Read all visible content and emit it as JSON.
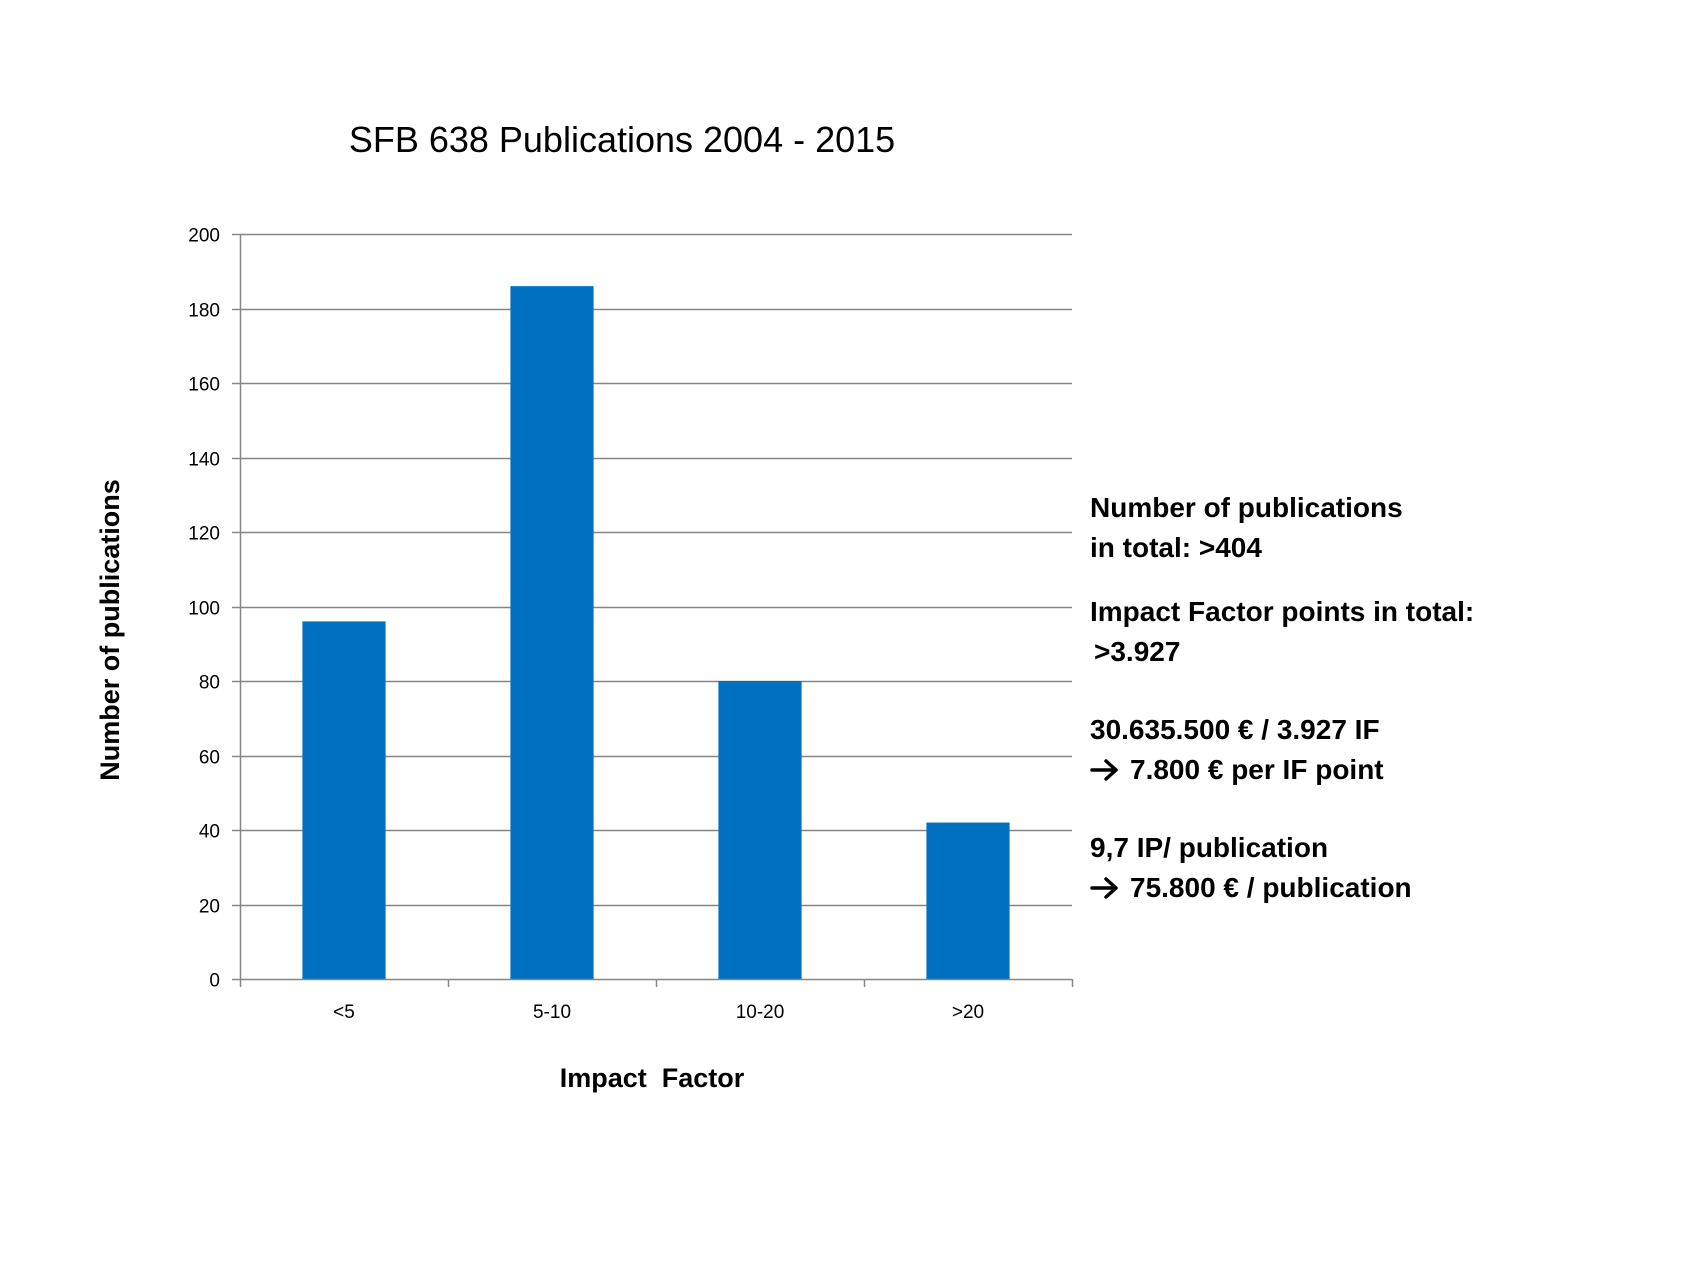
{
  "chart_data": {
    "type": "bar",
    "title": "SFB 638 Publications 2004 - 2015",
    "xlabel": "Impact  Factor",
    "ylabel": "Number of publications",
    "categories": [
      "<5",
      "5-10",
      "10-20",
      ">20"
    ],
    "series": [
      {
        "values": [
          96,
          186,
          80,
          42
        ]
      }
    ],
    "ylim": [
      0,
      200
    ],
    "yticks": [
      0,
      20,
      40,
      60,
      80,
      100,
      120,
      140,
      160,
      180,
      200
    ],
    "ytick_labels": [
      "0",
      "20",
      "40",
      "60",
      "80",
      "100",
      "120",
      "140",
      "160",
      "180",
      "200"
    ],
    "grid": true,
    "legend": "none",
    "bar_color": "#0070C0",
    "grid_color": "#868686"
  },
  "info": {
    "total_pubs_line1": "Number of publications",
    "total_pubs_line2": "in total:  >404",
    "if_points_line1": "Impact Factor points  in total:",
    "if_points_line2": ">3.927",
    "cost_line1": "30.635.500 € / 3.927 IF",
    "cost_line2": "7.800 € per IF point",
    "per_pub_line1": "9,7 IP/ publication",
    "per_pub_line2": "75.800 € / publication",
    "arrow_icon": "right-arrow-icon"
  }
}
